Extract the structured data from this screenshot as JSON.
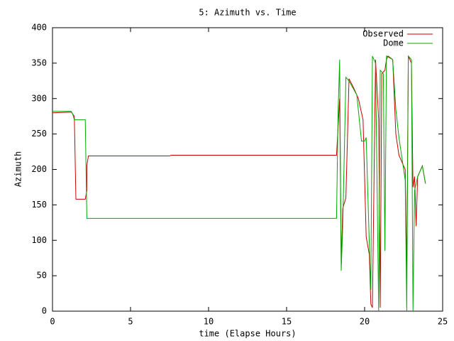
{
  "chart_data": {
    "type": "line",
    "title": "5: Azimuth vs. Time",
    "xlabel": "time (Elapse Hours)",
    "ylabel": "Azimuth",
    "xlim": [
      0,
      25
    ],
    "xticks": [
      0,
      5,
      10,
      15,
      20,
      25
    ],
    "ylim": [
      0,
      400
    ],
    "yticks": [
      0,
      50,
      100,
      150,
      200,
      250,
      300,
      350,
      400
    ],
    "grid": false,
    "legend": "top-right",
    "series": [
      {
        "name": "Observed",
        "color": "#cc0000",
        "x": [
          0,
          1.2,
          1.4,
          1.5,
          2.1,
          2.2,
          2.2,
          2.3,
          7.5,
          7.6,
          18.2,
          18.3,
          18.4,
          18.5,
          18.6,
          18.8,
          19.0,
          19.3,
          19.6,
          19.9,
          20.1,
          20.3,
          20.4,
          20.5,
          20.7,
          20.9,
          21.0,
          21.1,
          21.3,
          21.4,
          21.5,
          21.8,
          22.0,
          22.2,
          22.4,
          22.6,
          22.7,
          22.8,
          23.0,
          23.1,
          23.2,
          23.3,
          23.4,
          23.7,
          23.9
        ],
        "values": [
          280,
          281,
          275,
          158,
          158,
          170,
          205,
          219,
          219,
          220,
          220,
          260,
          300,
          65,
          145,
          160,
          328,
          315,
          300,
          270,
          105,
          80,
          10,
          5,
          355,
          270,
          5,
          335,
          340,
          355,
          360,
          355,
          250,
          220,
          210,
          200,
          55,
          360,
          350,
          175,
          190,
          120,
          190,
          205,
          180
        ]
      },
      {
        "name": "Dome",
        "color": "#00aa00",
        "x": [
          0,
          1.2,
          1.3,
          1.4,
          2.1,
          2.2,
          18.2,
          18.3,
          18.4,
          18.5,
          18.6,
          18.8,
          19.0,
          19.5,
          19.8,
          20.0,
          20.1,
          20.3,
          20.4,
          20.5,
          20.7,
          20.9,
          21.0,
          21.2,
          21.3,
          21.4,
          21.8,
          22.0,
          22.2,
          22.4,
          22.6,
          22.7,
          22.8,
          23.0,
          23.1,
          23.2,
          23.4,
          23.7,
          23.9
        ],
        "values": [
          282,
          282,
          278,
          270,
          270,
          131,
          131,
          280,
          355,
          57,
          120,
          330,
          325,
          305,
          240,
          240,
          245,
          95,
          30,
          360,
          350,
          0,
          340,
          335,
          85,
          360,
          355,
          285,
          245,
          215,
          185,
          0,
          360,
          355,
          0,
          170,
          190,
          205,
          180
        ]
      }
    ]
  }
}
